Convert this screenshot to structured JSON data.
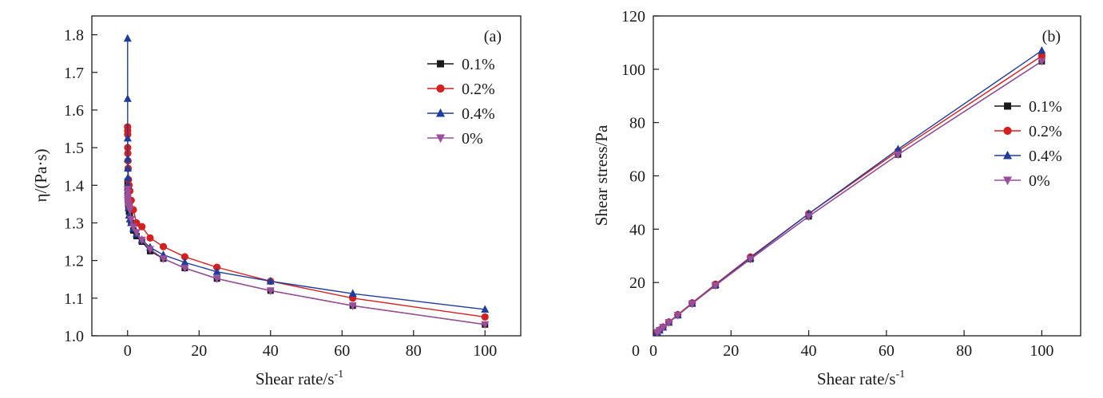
{
  "chart_data": [
    {
      "type": "line",
      "panel_label": "(a)",
      "xlabel": "Shear rate/s",
      "xlabel_sup": "-1",
      "ylabel": "η/(Pa·s)",
      "xlim": [
        -10,
        110
      ],
      "ylim": [
        1.0,
        1.85
      ],
      "xticks": [
        0,
        20,
        40,
        60,
        80,
        100
      ],
      "yticks": [
        1.0,
        1.1,
        1.2,
        1.3,
        1.4,
        1.5,
        1.6,
        1.7,
        1.8
      ],
      "ytick_labels": [
        "1.0",
        "1.1",
        "1.2",
        "1.3",
        "1.4",
        "1.5",
        "1.6",
        "1.7",
        "1.8"
      ],
      "legend_position": "top-right",
      "series": [
        {
          "name": "0.1%",
          "color": "#1a1a1a",
          "marker": "square",
          "x": [
            0.01,
            0.016,
            0.025,
            0.04,
            0.063,
            0.1,
            0.16,
            0.25,
            0.4,
            0.63,
            1.0,
            1.6,
            2.5,
            4.0,
            6.3,
            10,
            16,
            25,
            40,
            63,
            100
          ],
          "y": [
            1.41,
            1.4,
            1.39,
            1.38,
            1.37,
            1.36,
            1.35,
            1.34,
            1.33,
            1.32,
            1.3,
            1.28,
            1.265,
            1.25,
            1.225,
            1.205,
            1.18,
            1.152,
            1.12,
            1.08,
            1.03
          ]
        },
        {
          "name": "0.2%",
          "color": "#d42020",
          "marker": "circle",
          "x": [
            0.01,
            0.016,
            0.025,
            0.04,
            0.063,
            0.1,
            0.16,
            0.25,
            0.4,
            0.63,
            1.0,
            1.6,
            2.5,
            4.0,
            6.3,
            10,
            16,
            25,
            40,
            63,
            100
          ],
          "y": [
            1.555,
            1.545,
            1.535,
            1.5,
            1.485,
            1.465,
            1.445,
            1.415,
            1.4,
            1.385,
            1.36,
            1.335,
            1.3,
            1.29,
            1.26,
            1.237,
            1.21,
            1.182,
            1.145,
            1.1,
            1.05
          ]
        },
        {
          "name": "0.4%",
          "color": "#1f3d99",
          "marker": "triangle-up",
          "x": [
            0.01,
            0.016,
            0.025,
            0.04,
            0.063,
            0.1,
            0.16,
            0.25,
            0.4,
            0.63,
            1.0,
            1.6,
            2.5,
            4.0,
            6.3,
            10,
            16,
            25,
            40,
            63,
            100
          ],
          "y": [
            1.79,
            1.63,
            1.525,
            1.47,
            1.445,
            1.42,
            1.4,
            1.34,
            1.32,
            1.31,
            1.3,
            1.285,
            1.27,
            1.255,
            1.235,
            1.215,
            1.195,
            1.17,
            1.145,
            1.112,
            1.07
          ]
        },
        {
          "name": "0%",
          "color": "#9b4e9b",
          "marker": "triangle-down",
          "x": [
            0.01,
            0.016,
            0.025,
            0.04,
            0.063,
            0.1,
            0.16,
            0.25,
            0.4,
            0.63,
            1.0,
            1.6,
            2.5,
            4.0,
            6.3,
            10,
            16,
            25,
            40,
            63,
            100
          ],
          "y": [
            1.39,
            1.38,
            1.37,
            1.365,
            1.36,
            1.355,
            1.35,
            1.345,
            1.34,
            1.335,
            1.31,
            1.29,
            1.275,
            1.255,
            1.23,
            1.205,
            1.18,
            1.152,
            1.12,
            1.08,
            1.03
          ]
        }
      ]
    },
    {
      "type": "line",
      "panel_label": "(b)",
      "xlabel": "Shear rate/s",
      "xlabel_sup": "-1",
      "ylabel": "Shear stress/Pa",
      "xlim": [
        0,
        110
      ],
      "ylim": [
        0,
        120
      ],
      "xticks": [
        0,
        20,
        40,
        60,
        80,
        100
      ],
      "yticks": [
        20,
        40,
        60,
        80,
        100,
        120
      ],
      "ytick_labels": [
        "20",
        "40",
        "60",
        "80",
        "100",
        "120"
      ],
      "legend_position": "center-right",
      "series": [
        {
          "name": "0.1%",
          "color": "#1a1a1a",
          "marker": "square",
          "x": [
            1.0,
            1.6,
            2.5,
            4.0,
            6.3,
            10,
            16,
            25,
            40,
            63,
            100
          ],
          "y": [
            1.3,
            2.05,
            3.2,
            5.0,
            7.7,
            12.05,
            18.9,
            28.8,
            44.8,
            68.0,
            103.0
          ]
        },
        {
          "name": "0.2%",
          "color": "#d42020",
          "marker": "circle",
          "x": [
            1.0,
            1.6,
            2.5,
            4.0,
            6.3,
            10,
            16,
            25,
            40,
            63,
            100
          ],
          "y": [
            1.36,
            2.14,
            3.25,
            5.16,
            7.94,
            12.37,
            19.36,
            29.55,
            45.8,
            69.3,
            105.0
          ]
        },
        {
          "name": "0.4%",
          "color": "#1f3d99",
          "marker": "triangle-up",
          "x": [
            1.0,
            1.6,
            2.5,
            4.0,
            6.3,
            10,
            16,
            25,
            40,
            63,
            100
          ],
          "y": [
            1.3,
            2.06,
            3.18,
            5.02,
            7.78,
            12.15,
            19.1,
            29.25,
            45.8,
            70.0,
            107.0
          ]
        },
        {
          "name": "0%",
          "color": "#9b4e9b",
          "marker": "triangle-down",
          "x": [
            1.0,
            1.6,
            2.5,
            4.0,
            6.3,
            10,
            16,
            25,
            40,
            63,
            100
          ],
          "y": [
            1.31,
            2.06,
            3.19,
            5.02,
            7.75,
            12.05,
            18.9,
            28.8,
            44.8,
            68.0,
            103.0
          ]
        }
      ]
    }
  ]
}
